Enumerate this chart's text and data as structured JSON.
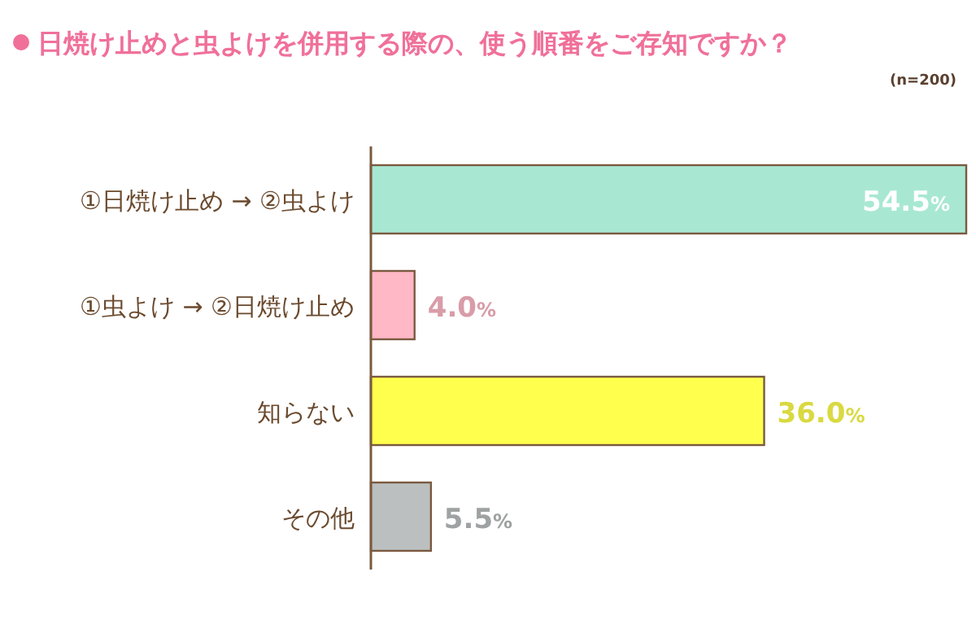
{
  "chart_data": {
    "type": "bar",
    "orientation": "horizontal",
    "title": "日焼け止めと虫よけを併用する際の、使う順番をご存知ですか？",
    "annotations": [
      "(n=200)"
    ],
    "categories": [
      "①日焼け止め → ②虫よけ",
      "①虫よけ → ②日焼け止め",
      "知らない",
      "その他"
    ],
    "values": [
      54.5,
      4.0,
      36.0,
      5.5
    ],
    "value_labels": [
      "54.5%",
      "4.0%",
      "36.0%",
      "5.5%"
    ],
    "colors": [
      "#a8e8d2",
      "#ffb8c6",
      "#ffff4d",
      "#bbbfbf"
    ]
  }
}
